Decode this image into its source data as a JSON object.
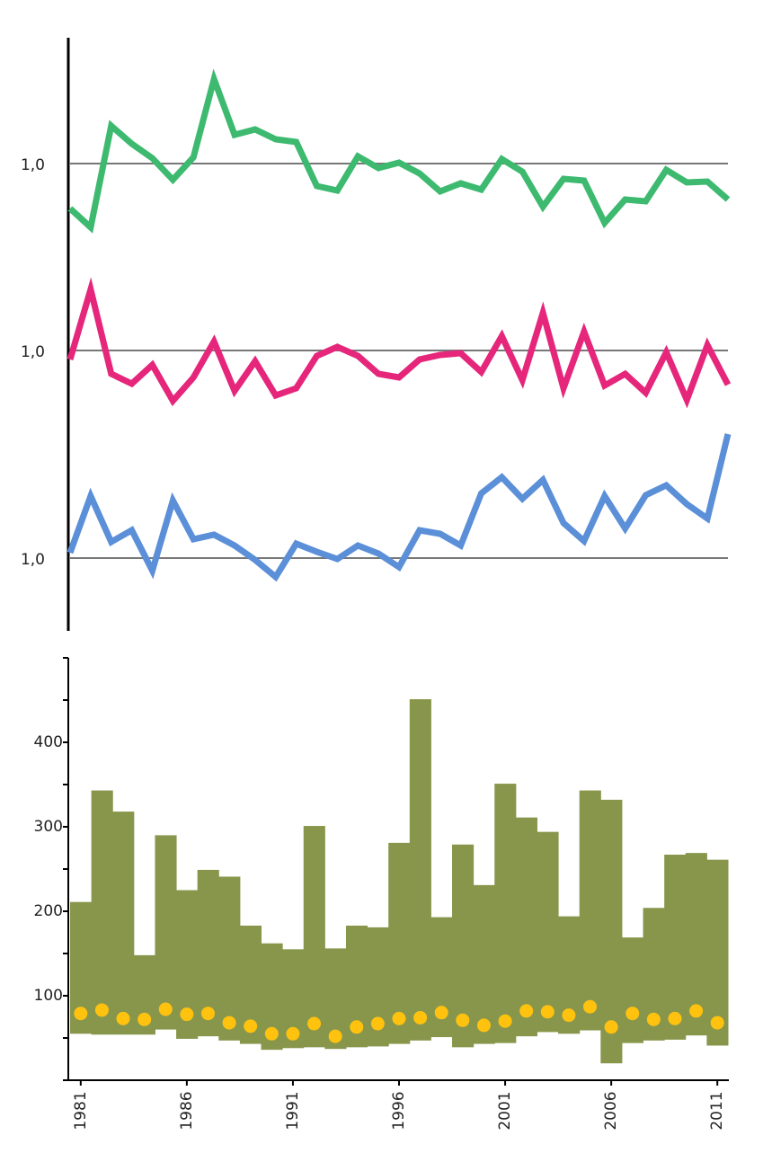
{
  "chart_data": [
    {
      "type": "line",
      "x": [
        1981,
        1982,
        1983,
        1984,
        1985,
        1986,
        1987,
        1988,
        1989,
        1990,
        1991,
        1992,
        1993,
        1994,
        1995,
        1996,
        1997,
        1998,
        1999,
        2000,
        2001,
        2002,
        2003,
        2004,
        2005,
        2006,
        2007,
        2008,
        2009,
        2010,
        2011,
        2012,
        2013
      ],
      "xlim": [
        1981,
        2013
      ],
      "series": [
        {
          "color": "#3dba6f",
          "values": [
            0.75,
            0.645,
            1.21,
            1.11,
            1.03,
            0.91,
            1.035,
            1.47,
            1.16,
            1.19,
            1.135,
            1.12,
            0.875,
            0.85,
            1.04,
            0.975,
            1.005,
            0.945,
            0.845,
            0.89,
            0.855,
            1.025,
            0.955,
            0.76,
            0.915,
            0.905,
            0.67,
            0.8,
            0.79,
            0.965,
            0.895,
            0.9,
            0.8
          ]
        }
      ],
      "ylim": [
        0.45,
        1.7
      ],
      "yticks": [
        {
          "value": 1,
          "label": "1,0"
        }
      ],
      "grid": true
    },
    {
      "type": "line",
      "x": [
        1981,
        1982,
        1983,
        1984,
        1985,
        1986,
        1987,
        1988,
        1989,
        1990,
        1991,
        1992,
        1993,
        1994,
        1995,
        1996,
        1997,
        1998,
        1999,
        2000,
        2001,
        2002,
        2003,
        2004,
        2005,
        2006,
        2007,
        2008,
        2009,
        2010,
        2011,
        2012,
        2013
      ],
      "xlim": [
        1981,
        2013
      ],
      "series": [
        {
          "color": "#e5267b",
          "values": [
            0.95,
            1.34,
            0.87,
            0.815,
            0.92,
            0.72,
            0.85,
            1.05,
            0.775,
            0.94,
            0.75,
            0.79,
            0.97,
            1.02,
            0.97,
            0.87,
            0.85,
            0.95,
            0.975,
            0.985,
            0.88,
            1.08,
            0.835,
            1.21,
            0.79,
            1.105,
            0.805,
            0.87,
            0.765,
            0.99,
            0.725,
            1.03,
            0.81
          ]
        }
      ],
      "ylim": [
        0.45,
        1.5
      ],
      "yticks": [
        {
          "value": 1,
          "label": "1,0"
        }
      ],
      "grid": true
    },
    {
      "type": "line",
      "x": [
        1981,
        1982,
        1983,
        1984,
        1985,
        1986,
        1987,
        1988,
        1989,
        1990,
        1991,
        1992,
        1993,
        1994,
        1995,
        1996,
        1997,
        1998,
        1999,
        2000,
        2001,
        2002,
        2003,
        2004,
        2005,
        2006,
        2007,
        2008,
        2009,
        2010,
        2011,
        2012,
        2013
      ],
      "xlim": [
        1981,
        2013
      ],
      "series": [
        {
          "color": "#5b8fd8",
          "values": [
            1.03,
            1.345,
            1.09,
            1.155,
            0.93,
            1.32,
            1.105,
            1.13,
            1.07,
            0.99,
            0.895,
            1.08,
            1.035,
            0.995,
            1.07,
            1.025,
            0.95,
            1.155,
            1.135,
            1.07,
            1.36,
            1.45,
            1.33,
            1.435,
            1.195,
            1.095,
            1.345,
            1.165,
            1.35,
            1.405,
            1.3,
            1.22,
            1.69
          ]
        }
      ],
      "ylim": [
        0.6,
        1.8
      ],
      "yticks": [
        {
          "value": 1,
          "label": "1,0"
        }
      ],
      "grid": true
    },
    {
      "type": "bar",
      "x": [
        1981,
        1982,
        1983,
        1984,
        1985,
        1986,
        1987,
        1988,
        1989,
        1990,
        1991,
        1992,
        1993,
        1994,
        1995,
        1996,
        1997,
        1998,
        1999,
        2000,
        2001,
        2002,
        2003,
        2004,
        2005,
        2006,
        2007,
        2008,
        2009,
        2010,
        2011
      ],
      "xlim": [
        1980.5,
        2011.5
      ],
      "xticks": [
        1981,
        1986,
        1991,
        1996,
        2001,
        2006,
        2011
      ],
      "series": [
        {
          "type": "floating-bar",
          "color": "#88964c",
          "low": [
            55,
            54,
            54,
            54,
            60,
            49,
            52,
            47,
            43,
            36,
            38,
            39,
            37,
            39,
            40,
            43,
            47,
            51,
            39,
            43,
            44,
            52,
            57,
            55,
            59,
            20,
            44,
            47,
            48,
            53,
            41
          ],
          "values": [
            211,
            343,
            318,
            148,
            290,
            225,
            249,
            241,
            183,
            162,
            155,
            301,
            156,
            183,
            181,
            281,
            451,
            193,
            279,
            231,
            351,
            311,
            294,
            194,
            343,
            332,
            169,
            204,
            267,
            269,
            261
          ]
        },
        {
          "type": "dot",
          "color": "#ffc20e",
          "values": [
            79,
            83,
            73,
            72,
            84,
            78,
            79,
            68,
            64,
            55,
            55,
            67,
            52,
            63,
            67,
            73,
            74,
            80,
            71,
            65,
            70,
            82,
            81,
            77,
            87,
            63,
            79,
            72,
            73,
            82,
            68
          ]
        }
      ],
      "ylim": [
        0,
        500
      ],
      "yticks": [
        100,
        200,
        300,
        400
      ],
      "yminorticks": [
        0,
        50,
        150,
        250,
        350,
        450,
        500
      ]
    }
  ]
}
